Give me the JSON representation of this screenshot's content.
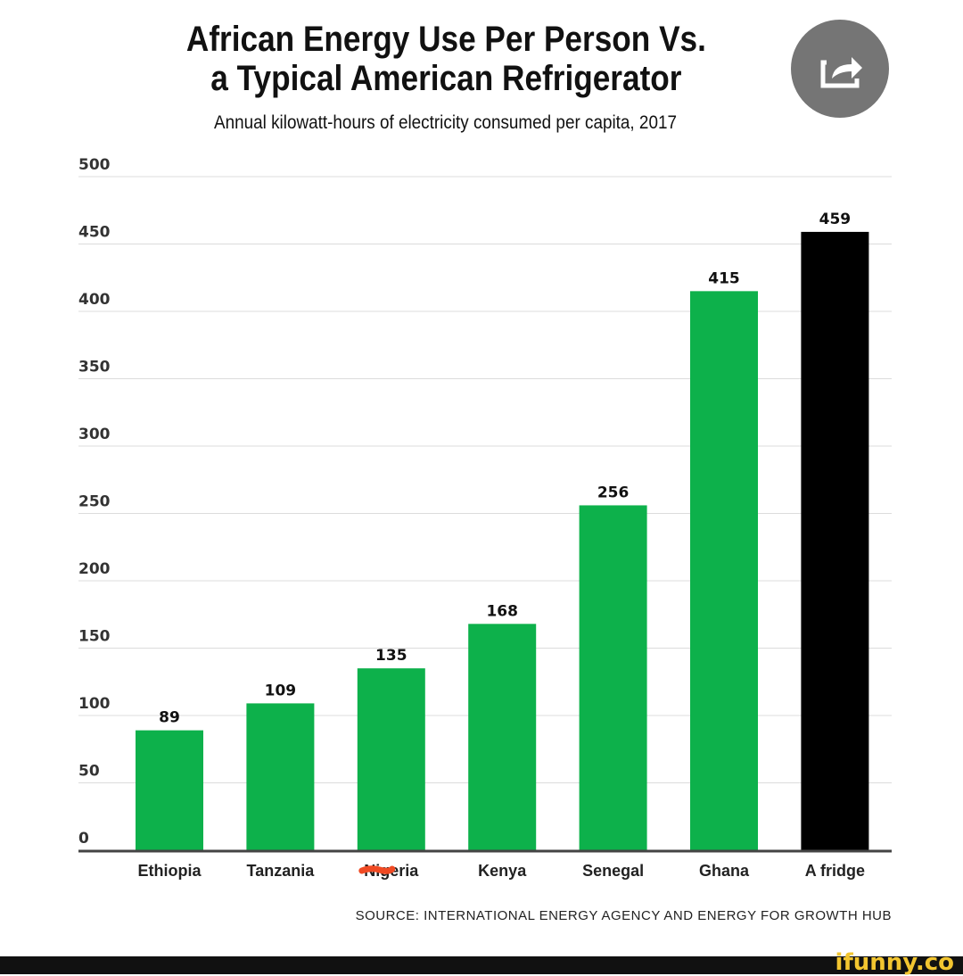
{
  "chart_data": {
    "type": "bar",
    "title": [
      "African Energy Use Per Person Vs.",
      "a Typical American Refrigerator"
    ],
    "subtitle": "Annual kilowatt-hours of electricity consumed per capita, 2017",
    "categories": [
      "Ethiopia",
      "Tanzania",
      "Nigeria",
      "Kenya",
      "Senegal",
      "Ghana",
      "A fridge"
    ],
    "values": [
      89,
      109,
      135,
      168,
      256,
      415,
      459
    ],
    "colors": [
      "#0db14b",
      "#0db14b",
      "#0db14b",
      "#0db14b",
      "#0db14b",
      "#0db14b",
      "#000000"
    ],
    "ylim": [
      0,
      500
    ],
    "yticks": [
      0,
      50,
      100,
      150,
      200,
      250,
      300,
      350,
      400,
      450,
      500
    ],
    "grid": true,
    "xlabel": "",
    "ylabel": "",
    "annotations": [
      "Nigeria label partially scribbled out in red"
    ],
    "source": "SOURCE: INTERNATIONAL ENERGY AGENCY AND ENERGY FOR GROWTH HUB"
  },
  "share_icon": "share-icon",
  "watermark": "ifunny.co"
}
